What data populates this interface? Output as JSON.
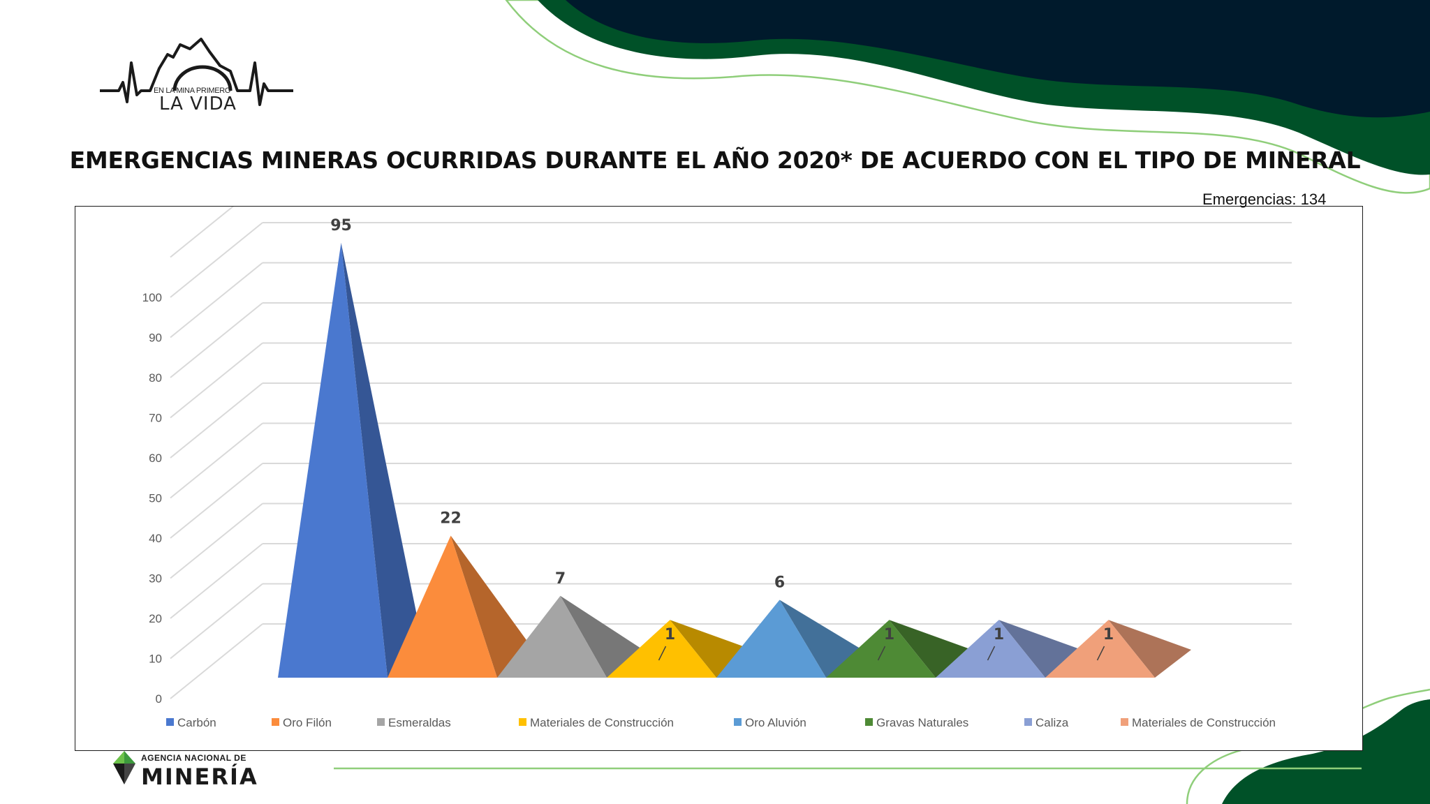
{
  "title": "EMERGENCIAS MINERAS OCURRIDAS DURANTE EL AÑO 2020* DE ACUERDO CON EL TIPO DE MINERAL",
  "subtitle": "Emergencias: 134",
  "logo_top": {
    "line1": "EN LA MINA PRIMERO",
    "line2": "LA VIDA"
  },
  "logo_bottom": {
    "line1": "AGENCIA NACIONAL DE",
    "line2": "MINERÍA"
  },
  "colors": {
    "dark_navy": "#001a2c",
    "dark_green": "#005128",
    "light_green": "#8fce7a"
  },
  "chart_data": {
    "type": "bar",
    "categories": [
      "Carbón",
      "Oro Filón",
      "Esmeraldas",
      "Materiales de Construcción",
      "Oro Aluvión",
      "Gravas Naturales",
      "Caliza",
      "Materiales de Construcción"
    ],
    "values": [
      95,
      22,
      7,
      1,
      6,
      1,
      1,
      1
    ],
    "value_labels": [
      "95",
      "22",
      "7",
      "1",
      "6",
      "1",
      "1",
      "1"
    ],
    "colors": [
      "#4a78cf",
      "#fb8c3c",
      "#a5a5a5",
      "#ffc000",
      "#5b9bd5",
      "#4e8a35",
      "#8a9fd4",
      "#f0a07a"
    ],
    "yticks": [
      "0",
      "10",
      "20",
      "30",
      "40",
      "50",
      "60",
      "70",
      "80",
      "90",
      "100"
    ],
    "ylim": [
      0,
      100
    ],
    "legend_position": "bottom",
    "grid": true,
    "shape": "3d-pyramid"
  }
}
